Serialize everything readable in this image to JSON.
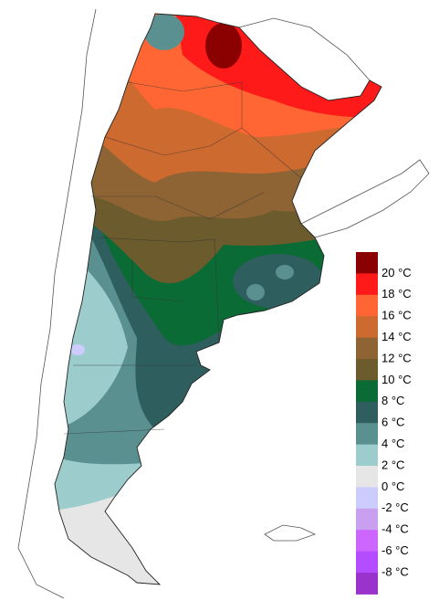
{
  "legend": {
    "labels": [
      "20 °C",
      "18 °C",
      "16 °C",
      "14 °C",
      "12 °C",
      "10 °C",
      "8 °C",
      "6 °C",
      "4 °C",
      "2 °C",
      "0 °C",
      "-2 °C",
      "-4 °C",
      "-6 °C",
      "-8 °C"
    ],
    "colors": [
      "#8b0000",
      "#ff1a1a",
      "#ff6633",
      "#cd6a30",
      "#8f6434",
      "#6b5b2d",
      "#0a6b35",
      "#2e5e5e",
      "#5a9090",
      "#9ccccc",
      "#e6e6e6",
      "#ccccff",
      "#c9a0f0",
      "#cc66ff",
      "#b34dff",
      "#9933cc"
    ]
  }
}
